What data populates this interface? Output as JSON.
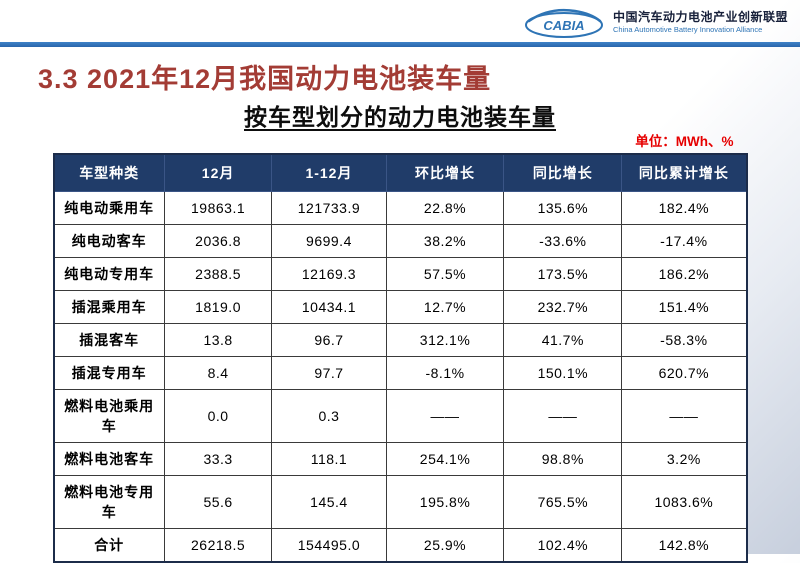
{
  "header": {
    "logo_text": "CABIA",
    "org_name_cn": "中国汽车动力电池产业创新联盟",
    "org_name_en": "China Automotive Battery Innovation Alliance"
  },
  "title": "3.3 2021年12月我国动力电池装车量",
  "subtitle": "按车型划分的动力电池装车量",
  "unit_label": "单位：MWh、%",
  "colors": {
    "table_header_bg": "#203c69",
    "title_red": "#a33c35",
    "unit_red": "#e60000",
    "accent_blue": "#2e74b5"
  },
  "chart_data": {
    "type": "table",
    "title": "按车型划分的动力电池装车量",
    "unit": "MWh、%",
    "headers": [
      "车型种类",
      "12月",
      "1-12月",
      "环比增长",
      "同比增长",
      "同比累计增长"
    ],
    "rows": [
      [
        "纯电动乘用车",
        "19863.1",
        "121733.9",
        "22.8%",
        "135.6%",
        "182.4%"
      ],
      [
        "纯电动客车",
        "2036.8",
        "9699.4",
        "38.2%",
        "-33.6%",
        "-17.4%"
      ],
      [
        "纯电动专用车",
        "2388.5",
        "12169.3",
        "57.5%",
        "173.5%",
        "186.2%"
      ],
      [
        "插混乘用车",
        "1819.0",
        "10434.1",
        "12.7%",
        "232.7%",
        "151.4%"
      ],
      [
        "插混客车",
        "13.8",
        "96.7",
        "312.1%",
        "41.7%",
        "-58.3%"
      ],
      [
        "插混专用车",
        "8.4",
        "97.7",
        "-8.1%",
        "150.1%",
        "620.7%"
      ],
      [
        "燃料电池乘用车",
        "0.0",
        "0.3",
        "——",
        "——",
        "——"
      ],
      [
        "燃料电池客车",
        "33.3",
        "118.1",
        "254.1%",
        "98.8%",
        "3.2%"
      ],
      [
        "燃料电池专用车",
        "55.6",
        "145.4",
        "195.8%",
        "765.5%",
        "1083.6%"
      ],
      [
        "合计",
        "26218.5",
        "154495.0",
        "25.9%",
        "102.4%",
        "142.8%"
      ]
    ]
  }
}
